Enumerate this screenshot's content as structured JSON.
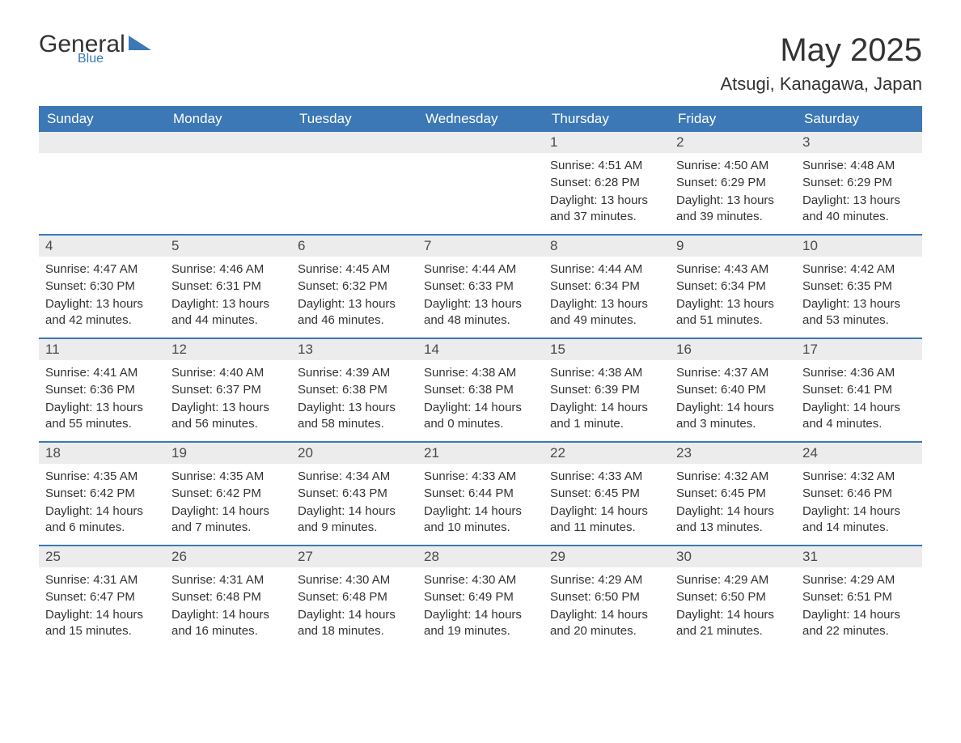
{
  "logo": {
    "text_general": "General",
    "text_blue": "Blue"
  },
  "title": "May 2025",
  "location": "Atsugi, Kanagawa, Japan",
  "colors": {
    "header_bg": "#3b78b5",
    "header_text": "#ffffff",
    "daynum_bg": "#ececec",
    "body_text": "#333333",
    "rule": "#3b78b5",
    "page_bg": "#ffffff"
  },
  "fonts": {
    "title_size_pt": 30,
    "location_size_pt": 16,
    "header_size_pt": 13,
    "daynum_size_pt": 13,
    "body_size_pt": 11
  },
  "day_headers": [
    "Sunday",
    "Monday",
    "Tuesday",
    "Wednesday",
    "Thursday",
    "Friday",
    "Saturday"
  ],
  "weeks": [
    [
      {
        "day": "",
        "sunrise": "",
        "sunset": "",
        "daylight": ""
      },
      {
        "day": "",
        "sunrise": "",
        "sunset": "",
        "daylight": ""
      },
      {
        "day": "",
        "sunrise": "",
        "sunset": "",
        "daylight": ""
      },
      {
        "day": "",
        "sunrise": "",
        "sunset": "",
        "daylight": ""
      },
      {
        "day": "1",
        "sunrise": "Sunrise: 4:51 AM",
        "sunset": "Sunset: 6:28 PM",
        "daylight": "Daylight: 13 hours and 37 minutes."
      },
      {
        "day": "2",
        "sunrise": "Sunrise: 4:50 AM",
        "sunset": "Sunset: 6:29 PM",
        "daylight": "Daylight: 13 hours and 39 minutes."
      },
      {
        "day": "3",
        "sunrise": "Sunrise: 4:48 AM",
        "sunset": "Sunset: 6:29 PM",
        "daylight": "Daylight: 13 hours and 40 minutes."
      }
    ],
    [
      {
        "day": "4",
        "sunrise": "Sunrise: 4:47 AM",
        "sunset": "Sunset: 6:30 PM",
        "daylight": "Daylight: 13 hours and 42 minutes."
      },
      {
        "day": "5",
        "sunrise": "Sunrise: 4:46 AM",
        "sunset": "Sunset: 6:31 PM",
        "daylight": "Daylight: 13 hours and 44 minutes."
      },
      {
        "day": "6",
        "sunrise": "Sunrise: 4:45 AM",
        "sunset": "Sunset: 6:32 PM",
        "daylight": "Daylight: 13 hours and 46 minutes."
      },
      {
        "day": "7",
        "sunrise": "Sunrise: 4:44 AM",
        "sunset": "Sunset: 6:33 PM",
        "daylight": "Daylight: 13 hours and 48 minutes."
      },
      {
        "day": "8",
        "sunrise": "Sunrise: 4:44 AM",
        "sunset": "Sunset: 6:34 PM",
        "daylight": "Daylight: 13 hours and 49 minutes."
      },
      {
        "day": "9",
        "sunrise": "Sunrise: 4:43 AM",
        "sunset": "Sunset: 6:34 PM",
        "daylight": "Daylight: 13 hours and 51 minutes."
      },
      {
        "day": "10",
        "sunrise": "Sunrise: 4:42 AM",
        "sunset": "Sunset: 6:35 PM",
        "daylight": "Daylight: 13 hours and 53 minutes."
      }
    ],
    [
      {
        "day": "11",
        "sunrise": "Sunrise: 4:41 AM",
        "sunset": "Sunset: 6:36 PM",
        "daylight": "Daylight: 13 hours and 55 minutes."
      },
      {
        "day": "12",
        "sunrise": "Sunrise: 4:40 AM",
        "sunset": "Sunset: 6:37 PM",
        "daylight": "Daylight: 13 hours and 56 minutes."
      },
      {
        "day": "13",
        "sunrise": "Sunrise: 4:39 AM",
        "sunset": "Sunset: 6:38 PM",
        "daylight": "Daylight: 13 hours and 58 minutes."
      },
      {
        "day": "14",
        "sunrise": "Sunrise: 4:38 AM",
        "sunset": "Sunset: 6:38 PM",
        "daylight": "Daylight: 14 hours and 0 minutes."
      },
      {
        "day": "15",
        "sunrise": "Sunrise: 4:38 AM",
        "sunset": "Sunset: 6:39 PM",
        "daylight": "Daylight: 14 hours and 1 minute."
      },
      {
        "day": "16",
        "sunrise": "Sunrise: 4:37 AM",
        "sunset": "Sunset: 6:40 PM",
        "daylight": "Daylight: 14 hours and 3 minutes."
      },
      {
        "day": "17",
        "sunrise": "Sunrise: 4:36 AM",
        "sunset": "Sunset: 6:41 PM",
        "daylight": "Daylight: 14 hours and 4 minutes."
      }
    ],
    [
      {
        "day": "18",
        "sunrise": "Sunrise: 4:35 AM",
        "sunset": "Sunset: 6:42 PM",
        "daylight": "Daylight: 14 hours and 6 minutes."
      },
      {
        "day": "19",
        "sunrise": "Sunrise: 4:35 AM",
        "sunset": "Sunset: 6:42 PM",
        "daylight": "Daylight: 14 hours and 7 minutes."
      },
      {
        "day": "20",
        "sunrise": "Sunrise: 4:34 AM",
        "sunset": "Sunset: 6:43 PM",
        "daylight": "Daylight: 14 hours and 9 minutes."
      },
      {
        "day": "21",
        "sunrise": "Sunrise: 4:33 AM",
        "sunset": "Sunset: 6:44 PM",
        "daylight": "Daylight: 14 hours and 10 minutes."
      },
      {
        "day": "22",
        "sunrise": "Sunrise: 4:33 AM",
        "sunset": "Sunset: 6:45 PM",
        "daylight": "Daylight: 14 hours and 11 minutes."
      },
      {
        "day": "23",
        "sunrise": "Sunrise: 4:32 AM",
        "sunset": "Sunset: 6:45 PM",
        "daylight": "Daylight: 14 hours and 13 minutes."
      },
      {
        "day": "24",
        "sunrise": "Sunrise: 4:32 AM",
        "sunset": "Sunset: 6:46 PM",
        "daylight": "Daylight: 14 hours and 14 minutes."
      }
    ],
    [
      {
        "day": "25",
        "sunrise": "Sunrise: 4:31 AM",
        "sunset": "Sunset: 6:47 PM",
        "daylight": "Daylight: 14 hours and 15 minutes."
      },
      {
        "day": "26",
        "sunrise": "Sunrise: 4:31 AM",
        "sunset": "Sunset: 6:48 PM",
        "daylight": "Daylight: 14 hours and 16 minutes."
      },
      {
        "day": "27",
        "sunrise": "Sunrise: 4:30 AM",
        "sunset": "Sunset: 6:48 PM",
        "daylight": "Daylight: 14 hours and 18 minutes."
      },
      {
        "day": "28",
        "sunrise": "Sunrise: 4:30 AM",
        "sunset": "Sunset: 6:49 PM",
        "daylight": "Daylight: 14 hours and 19 minutes."
      },
      {
        "day": "29",
        "sunrise": "Sunrise: 4:29 AM",
        "sunset": "Sunset: 6:50 PM",
        "daylight": "Daylight: 14 hours and 20 minutes."
      },
      {
        "day": "30",
        "sunrise": "Sunrise: 4:29 AM",
        "sunset": "Sunset: 6:50 PM",
        "daylight": "Daylight: 14 hours and 21 minutes."
      },
      {
        "day": "31",
        "sunrise": "Sunrise: 4:29 AM",
        "sunset": "Sunset: 6:51 PM",
        "daylight": "Daylight: 14 hours and 22 minutes."
      }
    ]
  ]
}
